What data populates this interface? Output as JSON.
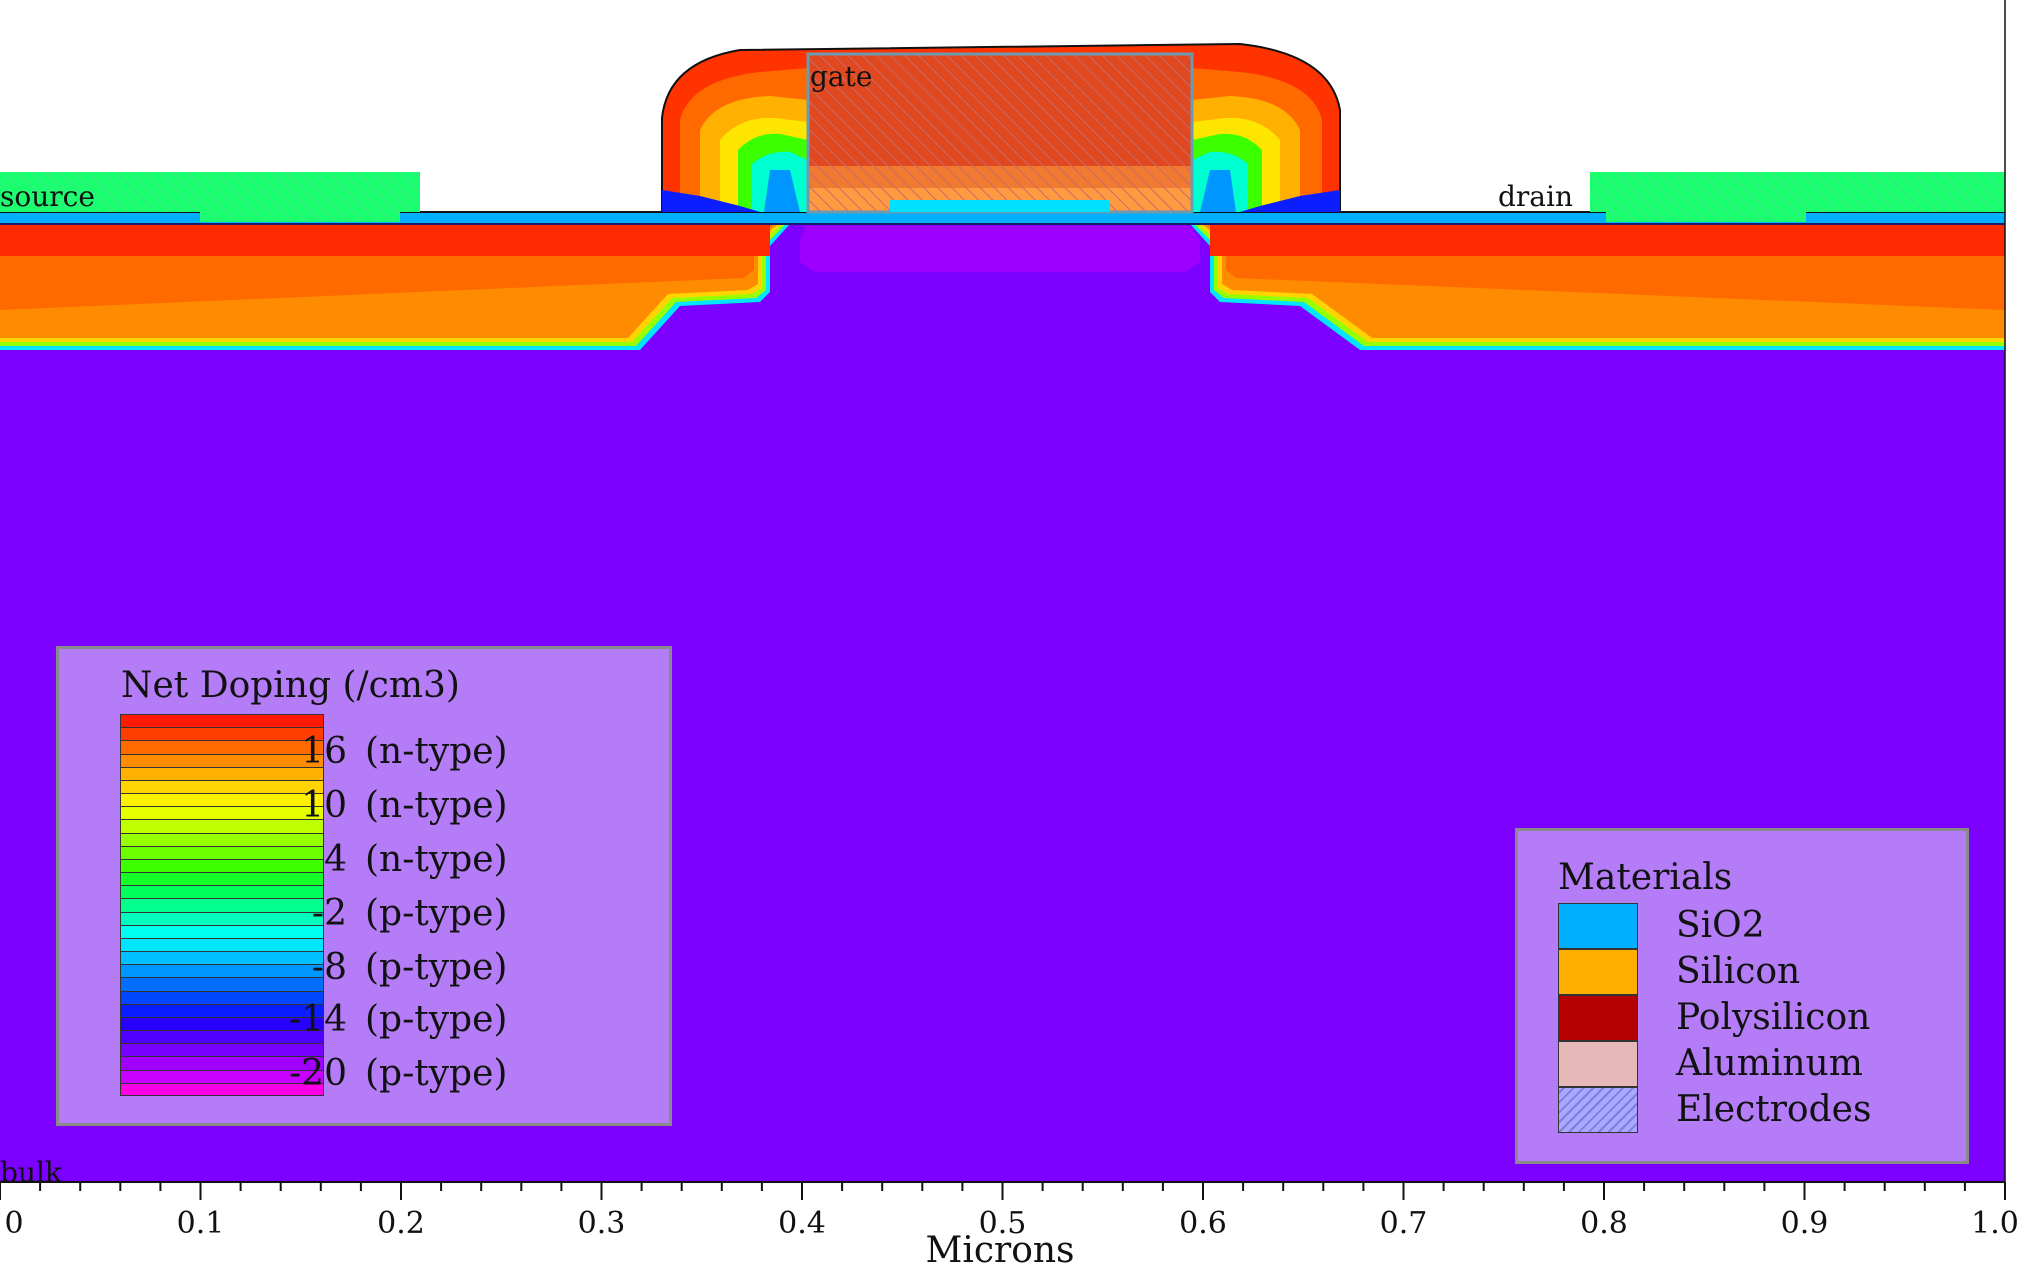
{
  "diagram": {
    "electrode_labels": {
      "gate": "gate",
      "source": "source",
      "drain": "drain",
      "bulk": "bulk"
    },
    "x_axis": {
      "title": "Microns",
      "ticks": [
        "0",
        "0.1",
        "0.2",
        "0.3",
        "0.4",
        "0.5",
        "0.6",
        "0.7",
        "0.8",
        "0.9",
        "1.0"
      ],
      "range": [
        0,
        1.0
      ]
    },
    "doping_legend": {
      "title": "Net Doping (/cm3)",
      "entries": [
        {
          "value": "16",
          "type": "(n-type)"
        },
        {
          "value": "10",
          "type": "(n-type)"
        },
        {
          "value": "4",
          "type": "(n-type)"
        },
        {
          "value": "-2",
          "type": "(p-type)"
        },
        {
          "value": "-8",
          "type": "(p-type)"
        },
        {
          "value": "-14",
          "type": "(p-type)"
        },
        {
          "value": "-20",
          "type": "(p-type)"
        }
      ],
      "colors": [
        "#ff1a00",
        "#ff3d00",
        "#ff6a00",
        "#ff8c00",
        "#ffb000",
        "#ffd400",
        "#fff000",
        "#e6ff00",
        "#c0ff00",
        "#96ff00",
        "#6bff00",
        "#3cff00",
        "#14ff28",
        "#00ff5a",
        "#00ff8c",
        "#00ffbe",
        "#00fff0",
        "#00e6ff",
        "#00c0ff",
        "#0096ff",
        "#006eff",
        "#0046ff",
        "#0a1eff",
        "#2800ff",
        "#5000ff",
        "#7800ff",
        "#a000ff",
        "#c800ff",
        "#ff00e6"
      ]
    },
    "materials_legend": {
      "title": "Materials",
      "items": [
        {
          "name": "SiO2",
          "color": "#00b0ff"
        },
        {
          "name": "Silicon",
          "color": "#ffae00"
        },
        {
          "name": "Polysilicon",
          "color": "#b40000"
        },
        {
          "name": "Aluminum",
          "color": "#e6b8b8"
        },
        {
          "name": "Electrodes",
          "color": "#a8a8ff"
        }
      ]
    },
    "region_colors": {
      "substrate": "#7b00ff",
      "legend_bg": "#b57cf8",
      "channel": "#9d00ff",
      "aluminum_contact": "#1aff6e"
    }
  }
}
